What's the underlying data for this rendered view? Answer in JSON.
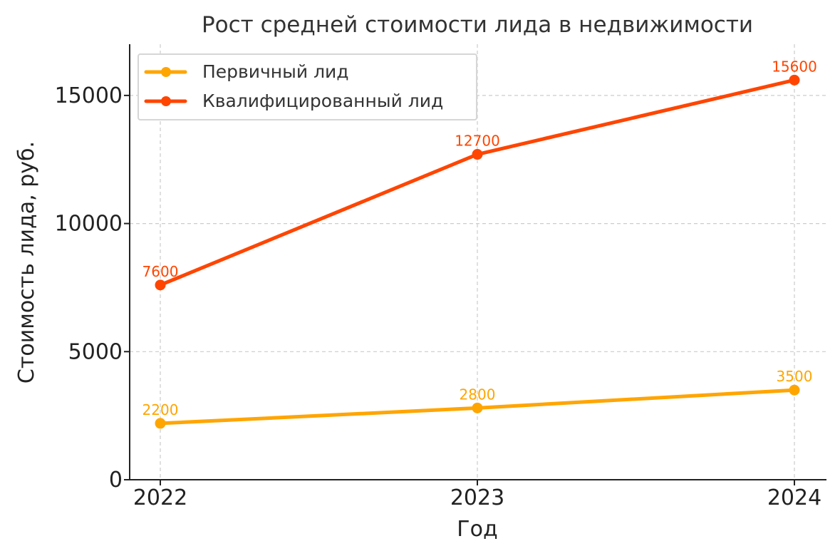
{
  "chart_data": {
    "type": "line",
    "title": "Рост средней стоимости лида в недвижимости",
    "xlabel": "Год",
    "ylabel": "Стоимость лида, руб.",
    "x": [
      "2022",
      "2023",
      "2024"
    ],
    "yticks": [
      0,
      5000,
      10000,
      15000
    ],
    "ylim": [
      0,
      17000
    ],
    "grid": true,
    "legend_position": "top-left",
    "series": [
      {
        "name": "Первичный лид",
        "values": [
          2200,
          2800,
          3500
        ],
        "labels": [
          "2200",
          "2800",
          "3500"
        ],
        "color": "#FFA500"
      },
      {
        "name": "Квалифицированный лид",
        "values": [
          7600,
          12700,
          15600
        ],
        "labels": [
          "7600",
          "12700",
          "15600"
        ],
        "color": "#FF4500"
      }
    ]
  }
}
